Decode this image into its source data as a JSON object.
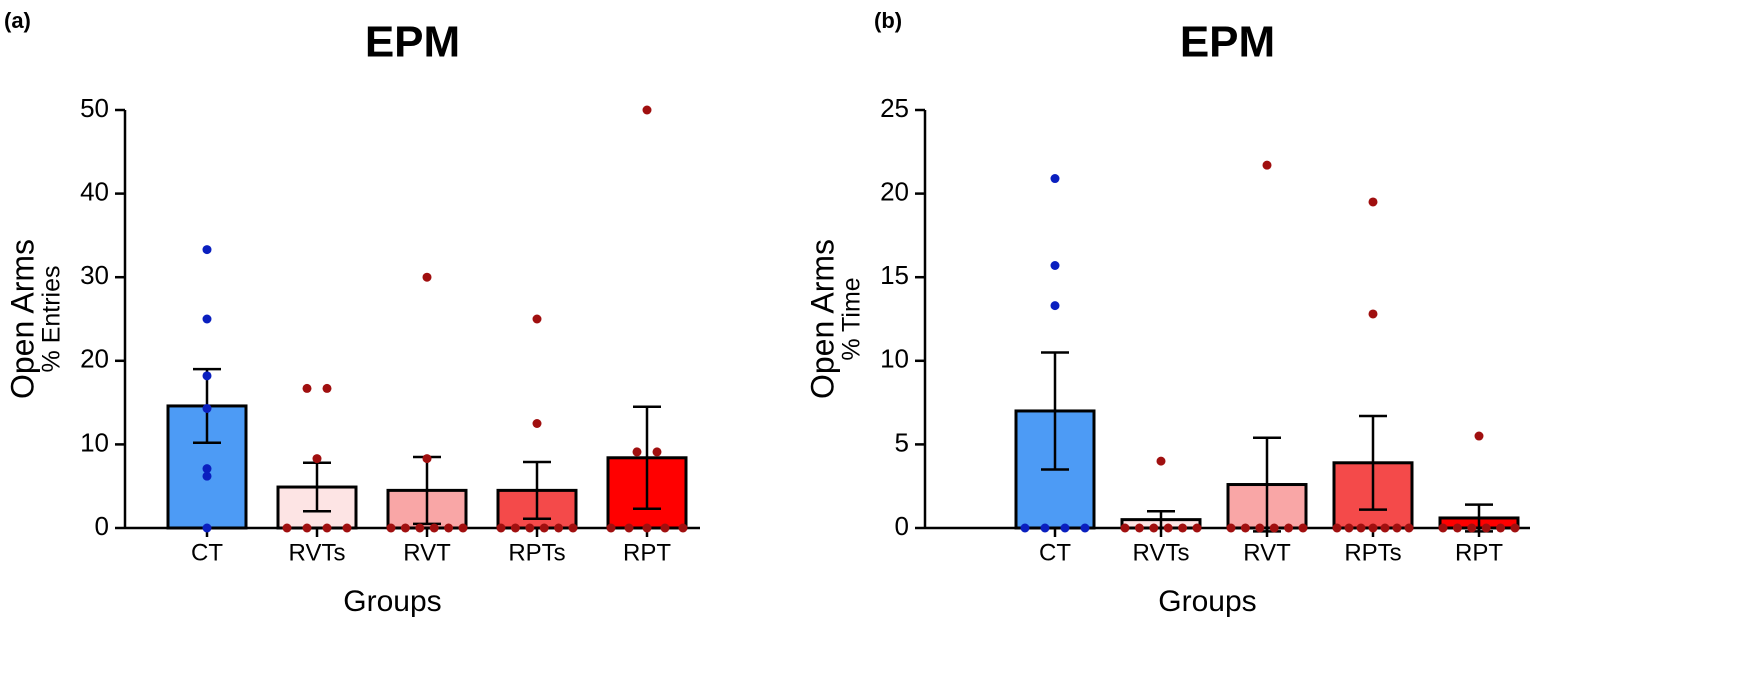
{
  "chart_data": [
    {
      "type": "bar",
      "panel": "(a)",
      "title": "EPM",
      "ylabel": "Open Arms",
      "ylabel2": "% Entries",
      "xlabel": "Groups",
      "categories": [
        "CT",
        "RVTs",
        "RVT",
        "RPTs",
        "RPT"
      ],
      "values": [
        14.6,
        4.9,
        4.5,
        4.5,
        8.4
      ],
      "errors": [
        4.4,
        2.9,
        4.0,
        3.4,
        6.1
      ],
      "colors": [
        "#4d9bf5",
        "#fde4e4",
        "#f9a6a6",
        "#f44a4a",
        "#ff0000"
      ],
      "points": [
        [
          33.3,
          25,
          18.2,
          14.3,
          7.1,
          6.2,
          0
        ],
        [
          16.7,
          16.7,
          8.3,
          0,
          0,
          0,
          0
        ],
        [
          30,
          8.3,
          0,
          0,
          0,
          0,
          0,
          0
        ],
        [
          25,
          12.5,
          0,
          0,
          0,
          0,
          0,
          0
        ],
        [
          50,
          9.1,
          9.1,
          0,
          0,
          0,
          0,
          0
        ]
      ],
      "point_colors": [
        "#0a1fbf",
        "#a00f0f",
        "#a00f0f",
        "#a00f0f",
        "#a00f0f"
      ],
      "ylim": [
        0,
        50
      ],
      "yticks": [
        0,
        10,
        20,
        30,
        40,
        50
      ]
    },
    {
      "type": "bar",
      "panel": "(b)",
      "title": "EPM",
      "ylabel": "Open Arms",
      "ylabel2": "% Time",
      "xlabel": "Groups",
      "categories": [
        "CT",
        "RVTs",
        "RVT",
        "RPTs",
        "RPT"
      ],
      "values": [
        7.0,
        0.5,
        2.6,
        3.9,
        0.6
      ],
      "errors": [
        3.5,
        0.5,
        2.8,
        2.8,
        0.8
      ],
      "colors": [
        "#4d9bf5",
        "#fde4e4",
        "#f9a6a6",
        "#f44a4a",
        "#ff0000"
      ],
      "points": [
        [
          20.9,
          15.7,
          13.3,
          0,
          0,
          0,
          0
        ],
        [
          4.0,
          0,
          0,
          0,
          0,
          0,
          0
        ],
        [
          21.7,
          0,
          0,
          0,
          0,
          0,
          0
        ],
        [
          19.5,
          12.8,
          0,
          0,
          0,
          0,
          0,
          0,
          0
        ],
        [
          5.5,
          0,
          0,
          0,
          0,
          0,
          0
        ]
      ],
      "point_colors": [
        "#0a1fbf",
        "#a00f0f",
        "#a00f0f",
        "#a00f0f",
        "#a00f0f"
      ],
      "ylim": [
        0,
        25
      ],
      "yticks": [
        0,
        5,
        10,
        15,
        20,
        25
      ]
    }
  ]
}
